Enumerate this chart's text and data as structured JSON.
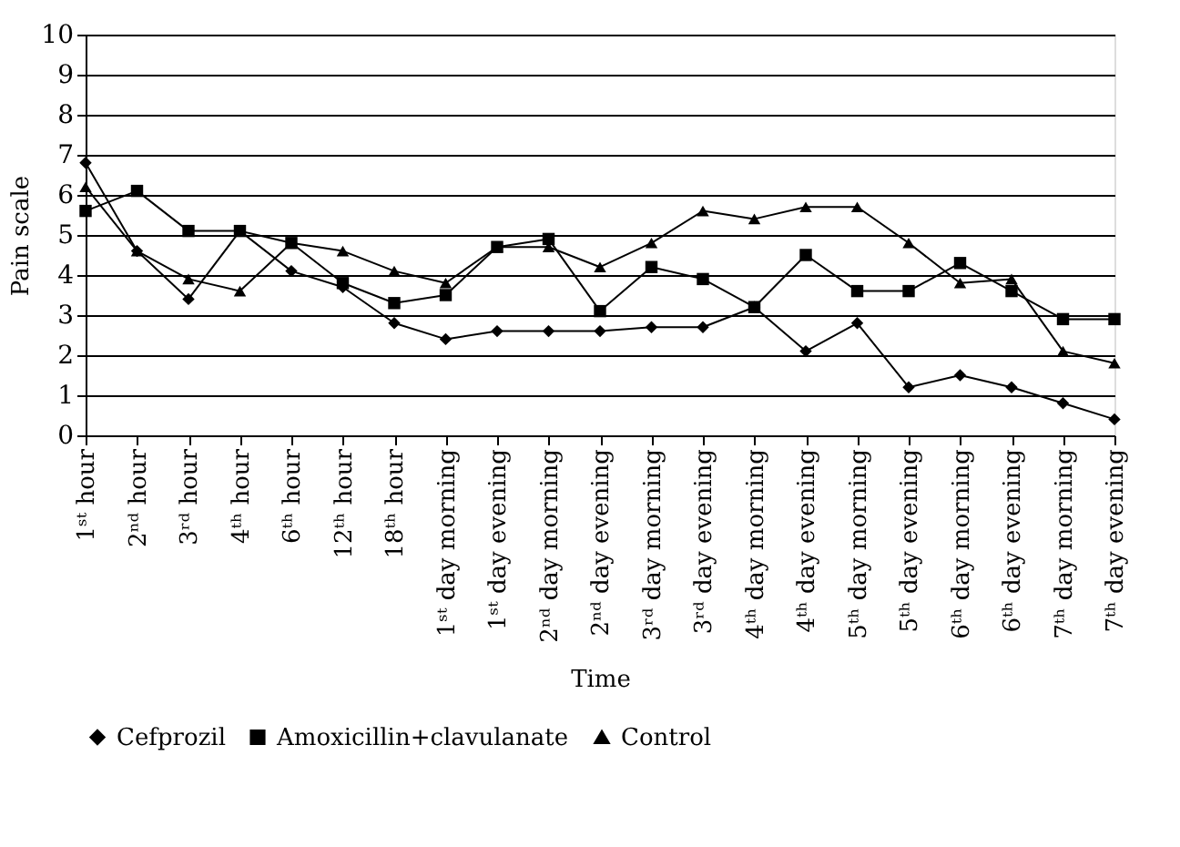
{
  "chart_data": {
    "type": "line",
    "xlabel": "Time",
    "ylabel": "Pain scale",
    "categories": [
      "1ˢᵗ hour",
      "2ⁿᵈ hour",
      "3ʳᵈ hour",
      "4ᵗʰ hour",
      "6ᵗʰ hour",
      "12ᵗʰ hour",
      "18ᵗʰ hour",
      "1ˢᵗ day morning",
      "1ˢᵗ day evening",
      "2ⁿᵈ day morning",
      "2ⁿᵈ day evening",
      "3ʳᵈ day morning",
      "3ʳᵈ day evening",
      "4ᵗʰ day morning",
      "4ᵗʰ day evening",
      "5ᵗʰ day morning",
      "5ᵗʰ day evening",
      "6ᵗʰ day morning",
      "6ᵗʰ day evening",
      "7ᵗʰ day morning",
      "7ᵗʰ day evening"
    ],
    "series": [
      {
        "name": "Cefprozil",
        "color": "#000000",
        "marker": "diamond",
        "values": [
          6.8,
          4.6,
          3.4,
          5.1,
          4.1,
          3.7,
          2.8,
          2.4,
          2.6,
          2.6,
          2.6,
          2.7,
          2.7,
          3.2,
          2.1,
          2.8,
          1.2,
          1.5,
          1.2,
          0.8,
          0.4
        ]
      },
      {
        "name": "Amoxicillin+clavulanate",
        "color": "#000000",
        "marker": "square",
        "values": [
          5.6,
          6.1,
          5.1,
          5.1,
          4.8,
          3.8,
          3.3,
          3.5,
          4.7,
          4.9,
          3.1,
          4.2,
          3.9,
          3.2,
          4.5,
          3.6,
          3.6,
          4.3,
          3.6,
          2.9,
          2.9
        ]
      },
      {
        "name": "Control",
        "color": "#000000",
        "marker": "triangle",
        "values": [
          6.2,
          4.6,
          3.9,
          3.6,
          4.8,
          4.6,
          4.1,
          3.8,
          4.7,
          4.7,
          4.2,
          4.8,
          5.6,
          5.4,
          5.7,
          5.7,
          4.8,
          3.8,
          3.9,
          2.1,
          1.8
        ]
      }
    ],
    "ylim": [
      0,
      10
    ],
    "yticks": [
      0,
      1,
      2,
      3,
      4,
      5,
      6,
      7,
      8,
      9,
      10
    ],
    "grid": "y",
    "legend": "bottom",
    "line_style": "solid"
  }
}
